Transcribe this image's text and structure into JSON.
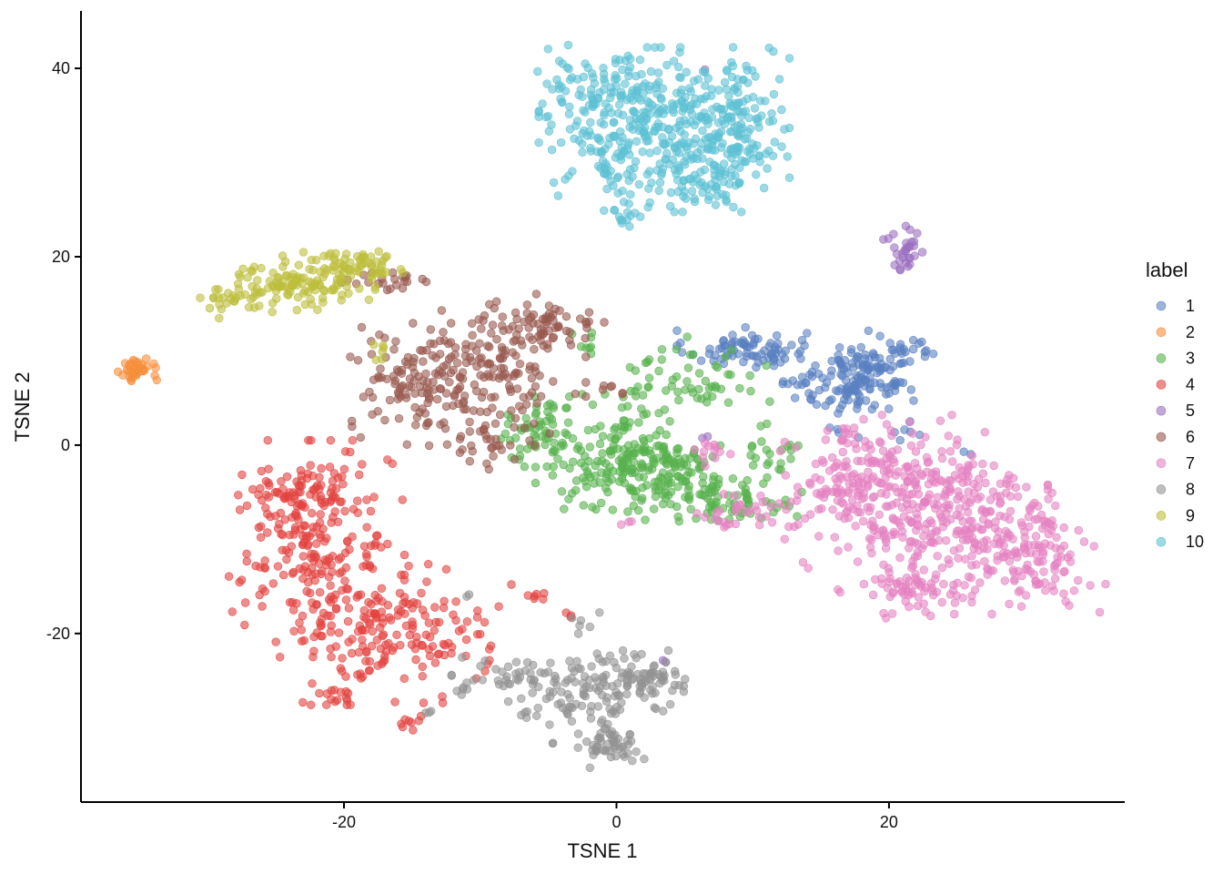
{
  "chart_data": {
    "type": "scatter",
    "title": "",
    "xlabel": "TSNE 1",
    "ylabel": "TSNE 2",
    "xlim": [
      -39.3,
      37.3
    ],
    "ylim": [
      -37.9,
      46.1
    ],
    "x_ticks": [
      -20,
      0,
      20
    ],
    "y_ticks": [
      -20,
      0,
      20,
      40
    ],
    "x_tick_labels": [
      "-20",
      "0",
      "20"
    ],
    "y_tick_labels": [
      "-20",
      "0",
      "20",
      "40"
    ],
    "grid": false,
    "point_opacity": 0.6,
    "legend": {
      "title": "label",
      "position": "right"
    },
    "series": [
      {
        "name": "1",
        "color": "#5A80C1",
        "clusters": [
          {
            "cx": 9.5,
            "cy": 10.2,
            "sx": 2.2,
            "sy": 1.0,
            "n": 80
          },
          {
            "cx": 18.5,
            "cy": 8.0,
            "sx": 1.8,
            "sy": 1.8,
            "n": 120
          },
          {
            "cx": 14.0,
            "cy": 6.5,
            "sx": 1.2,
            "sy": 0.7,
            "n": 18
          },
          {
            "cx": 17.0,
            "cy": 4.8,
            "sx": 1.2,
            "sy": 0.9,
            "n": 25
          },
          {
            "cx": 22.0,
            "cy": 10.0,
            "sx": 0.8,
            "sy": 0.6,
            "n": 10
          },
          {
            "cx": 21.5,
            "cy": 2.0,
            "sx": 1.0,
            "sy": 1.0,
            "n": 6
          },
          {
            "cx": 16.5,
            "cy": 1.5,
            "sx": 0.6,
            "sy": 0.4,
            "n": 4
          },
          {
            "cx": 25.5,
            "cy": -0.5,
            "sx": 0.3,
            "sy": 0.3,
            "n": 2
          }
        ]
      },
      {
        "name": "2",
        "color": "#F68E3A",
        "clusters": [
          {
            "cx": -35.2,
            "cy": 8.0,
            "sx": 0.6,
            "sy": 0.6,
            "n": 35
          },
          {
            "cx": -33.8,
            "cy": 7.0,
            "sx": 0.1,
            "sy": 0.1,
            "n": 1
          }
        ]
      },
      {
        "name": "3",
        "color": "#56B14D",
        "clusters": [
          {
            "cx": 0.5,
            "cy": -1.5,
            "sx": 2.8,
            "sy": 3.0,
            "n": 180
          },
          {
            "cx": 5.0,
            "cy": -3.5,
            "sx": 2.0,
            "sy": 2.0,
            "n": 90
          },
          {
            "cx": 9.0,
            "cy": -6.0,
            "sx": 2.0,
            "sy": 1.0,
            "n": 45
          },
          {
            "cx": -5.8,
            "cy": 0.5,
            "sx": 1.5,
            "sy": 1.5,
            "n": 50
          },
          {
            "cx": 5.5,
            "cy": 7.0,
            "sx": 2.5,
            "sy": 2.0,
            "n": 60
          },
          {
            "cx": 11.5,
            "cy": -0.5,
            "sx": 0.8,
            "sy": 1.6,
            "n": 22
          },
          {
            "cx": -2.5,
            "cy": 10.5,
            "sx": 0.8,
            "sy": 0.8,
            "n": 8
          },
          {
            "cx": -5.0,
            "cy": 4.5,
            "sx": 0.8,
            "sy": 0.8,
            "n": 6
          }
        ]
      },
      {
        "name": "4",
        "color": "#E3433F",
        "clusters": [
          {
            "cx": -22.0,
            "cy": -11.0,
            "sx": 2.8,
            "sy": 5.0,
            "n": 230
          },
          {
            "cx": -16.0,
            "cy": -20.0,
            "sx": 3.2,
            "sy": 3.2,
            "n": 160
          },
          {
            "cx": -23.5,
            "cy": -5.0,
            "sx": 1.8,
            "sy": 1.1,
            "n": 50
          },
          {
            "cx": -20.0,
            "cy": -26.0,
            "sx": 1.2,
            "sy": 1.0,
            "n": 18
          },
          {
            "cx": -15.0,
            "cy": -29.5,
            "sx": 0.5,
            "sy": 0.5,
            "n": 8
          },
          {
            "cx": -6.0,
            "cy": -16.0,
            "sx": 0.5,
            "sy": 0.5,
            "n": 6
          },
          {
            "cx": -3.5,
            "cy": -18.0,
            "sx": 0.3,
            "sy": 0.3,
            "n": 3
          },
          {
            "cx": -8.0,
            "cy": -15.0,
            "sx": 0.2,
            "sy": 0.2,
            "n": 1
          }
        ]
      },
      {
        "name": "5",
        "color": "#9B6FBF",
        "clusters": [
          {
            "cx": 21.3,
            "cy": 20.5,
            "sx": 0.5,
            "sy": 1.2,
            "n": 28
          },
          {
            "cx": 19.7,
            "cy": 22.0,
            "sx": 0.3,
            "sy": 0.1,
            "n": 2
          },
          {
            "cx": 3.5,
            "cy": -23.0,
            "sx": 0.3,
            "sy": 0.2,
            "n": 2
          },
          {
            "cx": 6.3,
            "cy": 0.5,
            "sx": 0.3,
            "sy": 0.3,
            "n": 2
          },
          {
            "cx": 6.5,
            "cy": 40.0,
            "sx": 0.2,
            "sy": 0.2,
            "n": 1
          }
        ]
      },
      {
        "name": "6",
        "color": "#97594F",
        "clusters": [
          {
            "cx": -14.0,
            "cy": 6.5,
            "sx": 2.8,
            "sy": 2.8,
            "n": 140
          },
          {
            "cx": -8.0,
            "cy": 8.0,
            "sx": 2.5,
            "sy": 3.5,
            "n": 120
          },
          {
            "cx": -5.5,
            "cy": 12.5,
            "sx": 2.0,
            "sy": 1.3,
            "n": 55
          },
          {
            "cx": -16.5,
            "cy": 17.5,
            "sx": 1.6,
            "sy": 0.5,
            "n": 22
          },
          {
            "cx": -9.5,
            "cy": 0.0,
            "sx": 1.2,
            "sy": 1.3,
            "n": 20
          },
          {
            "cx": -0.5,
            "cy": 5.8,
            "sx": 0.8,
            "sy": 0.4,
            "n": 6
          }
        ]
      },
      {
        "name": "7",
        "color": "#E582C2",
        "clusters": [
          {
            "cx": 22.0,
            "cy": -6.0,
            "sx": 4.2,
            "sy": 4.0,
            "n": 320
          },
          {
            "cx": 29.0,
            "cy": -11.5,
            "sx": 3.0,
            "sy": 2.8,
            "n": 180
          },
          {
            "cx": 17.0,
            "cy": -3.0,
            "sx": 2.2,
            "sy": 2.5,
            "n": 80
          },
          {
            "cx": 22.0,
            "cy": -15.5,
            "sx": 2.5,
            "sy": 1.3,
            "n": 60
          },
          {
            "cx": 10.5,
            "cy": -7.5,
            "sx": 2.0,
            "sy": 1.0,
            "n": 35
          },
          {
            "cx": 7.0,
            "cy": -0.5,
            "sx": 0.6,
            "sy": 0.9,
            "n": 12
          },
          {
            "cx": 1.0,
            "cy": -8.3,
            "sx": 0.4,
            "sy": 0.2,
            "n": 3
          }
        ]
      },
      {
        "name": "8",
        "color": "#939393",
        "clusters": [
          {
            "cx": -1.5,
            "cy": -25.5,
            "sx": 2.8,
            "sy": 1.6,
            "n": 100
          },
          {
            "cx": -0.5,
            "cy": -31.5,
            "sx": 1.1,
            "sy": 1.2,
            "n": 55
          },
          {
            "cx": 2.5,
            "cy": -24.5,
            "sx": 1.1,
            "sy": 1.0,
            "n": 40
          },
          {
            "cx": -7.5,
            "cy": -24.5,
            "sx": 2.0,
            "sy": 1.0,
            "n": 35
          },
          {
            "cx": -4.0,
            "cy": -27.5,
            "sx": 1.3,
            "sy": 1.0,
            "n": 20
          },
          {
            "cx": -3.0,
            "cy": -19.0,
            "sx": 0.8,
            "sy": 0.6,
            "n": 6
          },
          {
            "cx": -11.5,
            "cy": -26.0,
            "sx": 0.6,
            "sy": 0.6,
            "n": 5
          },
          {
            "cx": -13.5,
            "cy": -28.5,
            "sx": 0.5,
            "sy": 0.3,
            "n": 3
          },
          {
            "cx": -10.8,
            "cy": -16.0,
            "sx": 0.3,
            "sy": 0.2,
            "n": 2
          },
          {
            "cx": -4.5,
            "cy": -31.5,
            "sx": 0.2,
            "sy": 0.2,
            "n": 2
          }
        ]
      },
      {
        "name": "9",
        "color": "#BDBE3B",
        "clusters": [
          {
            "cx": -23.0,
            "cy": 17.5,
            "sx": 2.3,
            "sy": 1.4,
            "n": 110
          },
          {
            "cx": -19.0,
            "cy": 19.0,
            "sx": 1.6,
            "sy": 1.1,
            "n": 45
          },
          {
            "cx": -27.0,
            "cy": 16.0,
            "sx": 1.3,
            "sy": 1.1,
            "n": 25
          },
          {
            "cx": -29.5,
            "cy": 15.5,
            "sx": 0.8,
            "sy": 0.6,
            "n": 10
          },
          {
            "cx": -17.5,
            "cy": 10.0,
            "sx": 0.4,
            "sy": 0.6,
            "n": 6
          }
        ]
      },
      {
        "name": "10",
        "color": "#5EC1D3",
        "clusters": [
          {
            "cx": 3.5,
            "cy": 33.5,
            "sx": 4.0,
            "sy": 3.8,
            "n": 380
          },
          {
            "cx": -0.5,
            "cy": 38.0,
            "sx": 2.3,
            "sy": 2.0,
            "n": 80
          },
          {
            "cx": 8.0,
            "cy": 34.5,
            "sx": 1.8,
            "sy": 2.5,
            "n": 60
          },
          {
            "cx": 6.5,
            "cy": 27.0,
            "sx": 1.8,
            "sy": 1.0,
            "n": 40
          },
          {
            "cx": 10.0,
            "cy": 31.0,
            "sx": 1.2,
            "sy": 0.6,
            "n": 15
          },
          {
            "cx": 0.8,
            "cy": 25.0,
            "sx": 0.8,
            "sy": 0.7,
            "n": 12
          },
          {
            "cx": 0.5,
            "cy": 23.8,
            "sx": 0.3,
            "sy": 0.3,
            "n": 2
          }
        ]
      }
    ]
  }
}
